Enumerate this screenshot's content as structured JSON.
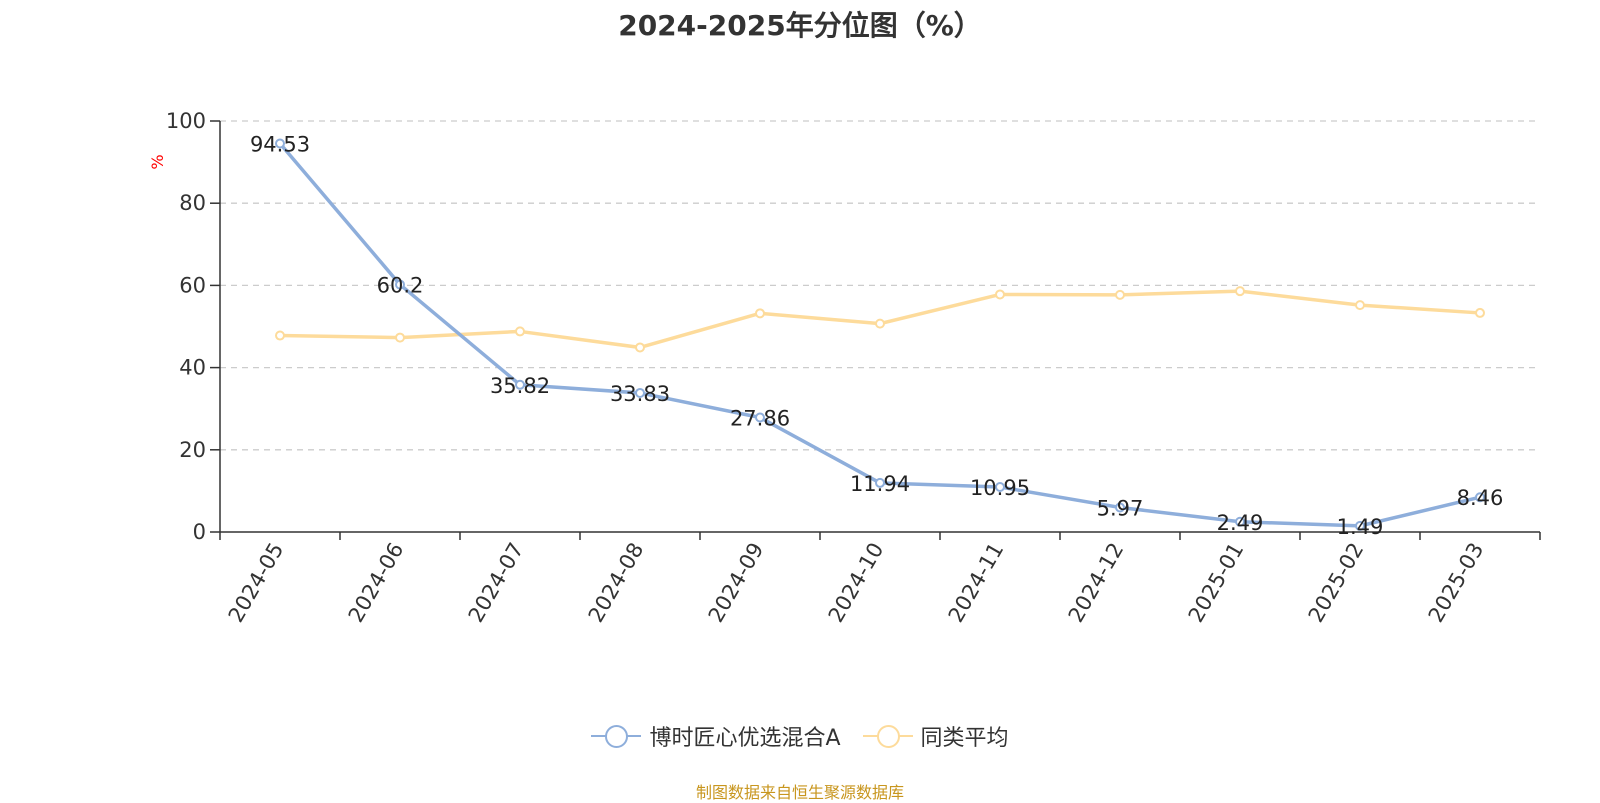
{
  "chart_data": {
    "type": "line",
    "title": "2024-2025年分位图（%）",
    "ylabel": "%",
    "xlabel": "",
    "categories": [
      "2024-05",
      "2024-06",
      "2024-07",
      "2024-08",
      "2024-09",
      "2024-10",
      "2024-11",
      "2024-12",
      "2025-01",
      "2025-02",
      "2025-03"
    ],
    "ylim": [
      0,
      100
    ],
    "yticks": [
      0,
      20,
      40,
      60,
      80,
      100
    ],
    "grid": true,
    "legend_position": "bottom",
    "series": [
      {
        "name": "博时匠心优选混合A",
        "color": "#8eaedb",
        "values": [
          94.53,
          60.2,
          35.82,
          33.83,
          27.86,
          11.94,
          10.95,
          5.97,
          2.49,
          1.49,
          8.46
        ],
        "labels": [
          "94.53",
          "60.2",
          "35.82",
          "33.83",
          "27.86",
          "11.94",
          "10.95",
          "5.97",
          "2.49",
          "1.49",
          "8.46"
        ]
      },
      {
        "name": "同类平均",
        "color": "#fddb9b",
        "values": [
          47.8,
          47.3,
          48.8,
          44.9,
          53.2,
          50.7,
          57.8,
          57.7,
          58.6,
          55.2,
          53.3
        ]
      }
    ]
  },
  "legend": {
    "item1": "博时匠心优选混合A",
    "item2": "同类平均"
  },
  "colors": {
    "source_text": "#c8961e",
    "ylabel": "#ff0000",
    "grid": "#cccccc",
    "axis": "#333333"
  },
  "footer": {
    "source": "制图数据来自恒生聚源数据库"
  }
}
